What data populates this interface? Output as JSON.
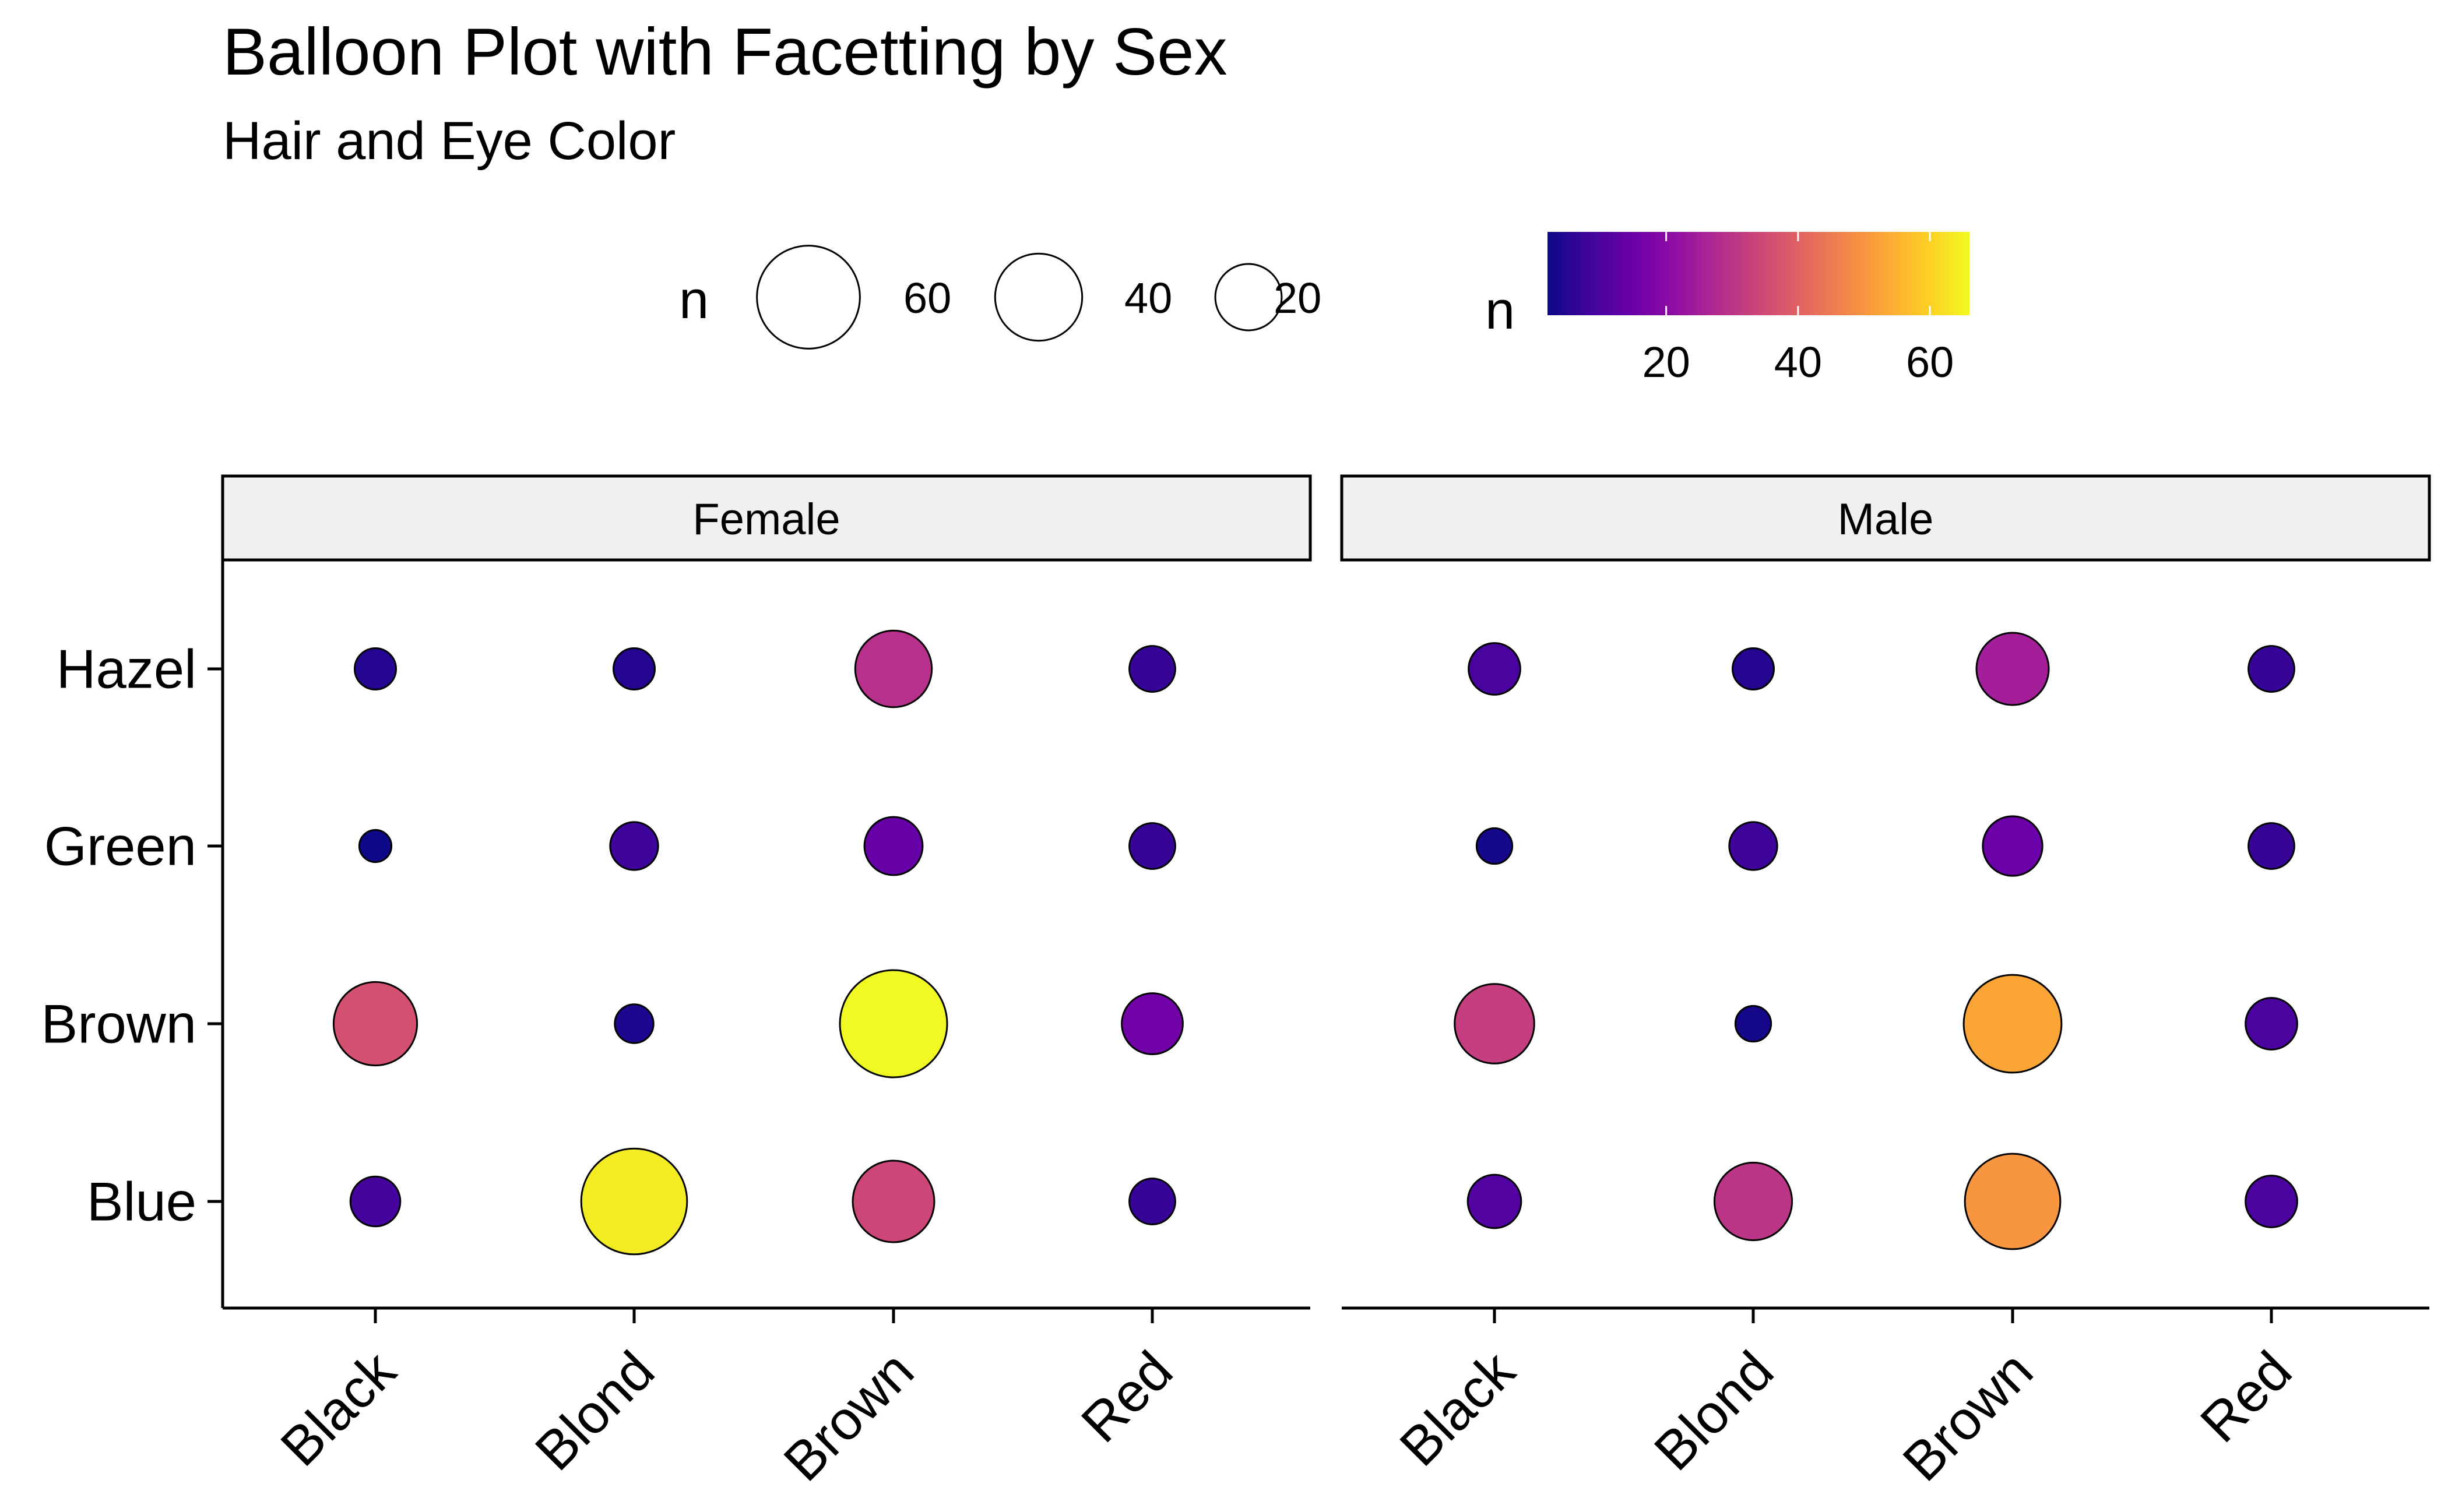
{
  "chart_data": {
    "type": "balloon",
    "title": "Balloon Plot with Facetting by Sex",
    "subtitle": "Hair and Eye Color",
    "x_categories": [
      "Black",
      "Blond",
      "Brown",
      "Red"
    ],
    "y_categories": [
      "Hazel",
      "Green",
      "Brown",
      "Blue"
    ],
    "facets": [
      {
        "name": "Female",
        "values": {
          "Hazel": [
            5,
            5,
            29,
            7
          ],
          "Green": [
            2,
            8,
            14,
            7
          ],
          "Brown": [
            36,
            4,
            66,
            16
          ],
          "Blue": [
            9,
            64,
            34,
            7
          ]
        }
      },
      {
        "name": "Male",
        "values": {
          "Hazel": [
            10,
            5,
            25,
            7
          ],
          "Green": [
            3,
            8,
            15,
            7
          ],
          "Brown": [
            32,
            3,
            53,
            10
          ],
          "Blue": [
            11,
            30,
            50,
            10
          ]
        }
      }
    ],
    "size_legend": {
      "title": "n",
      "breaks": [
        60,
        40,
        20
      ]
    },
    "color_legend": {
      "title": "n",
      "breaks": [
        20,
        40,
        60
      ],
      "range": [
        2,
        66
      ],
      "palette": "plasma"
    },
    "grid": false,
    "legend_position": "top"
  }
}
